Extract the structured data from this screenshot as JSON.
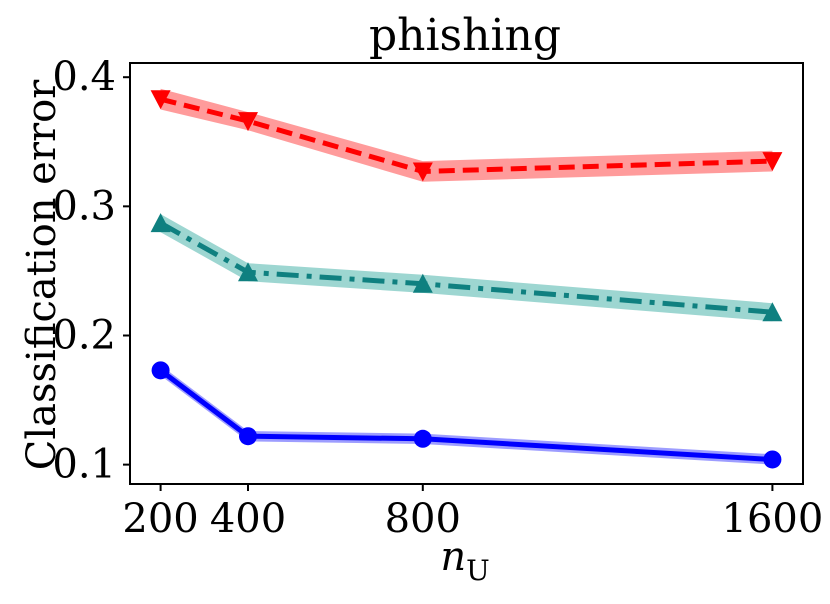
{
  "chart_data": {
    "type": "line",
    "title": "phishing",
    "xlabel_base": "n",
    "xlabel_sub": "U",
    "ylabel": "Classification error",
    "x": [
      200,
      400,
      800,
      1600
    ],
    "xticks": [
      "200",
      "400",
      "800",
      "1600"
    ],
    "yticks": [
      "0.1",
      "0.2",
      "0.3",
      "0.4"
    ],
    "xlim": [
      130,
      1670
    ],
    "ylim": [
      0.085,
      0.411
    ],
    "grid": false,
    "series": [
      {
        "values": [
          0.383,
          0.366,
          0.327,
          0.335
        ],
        "band": [
          0.008,
          0.007,
          0.008,
          0.008
        ],
        "color": "#ff0000",
        "band_color": "#ff8a8a",
        "marker": "triangle-down",
        "dash": "dashed"
      },
      {
        "values": [
          0.287,
          0.249,
          0.24,
          0.218
        ],
        "band": [
          0.007,
          0.007,
          0.007,
          0.007
        ],
        "color": "#0f8080",
        "band_color": "#8ccfc9",
        "marker": "triangle-up",
        "dash": "dashdot"
      },
      {
        "values": [
          0.173,
          0.122,
          0.12,
          0.104
        ],
        "band": [
          0.004,
          0.004,
          0.004,
          0.004
        ],
        "color": "#0000ff",
        "band_color": "#8c8cff",
        "marker": "circle",
        "dash": "solid"
      }
    ]
  }
}
